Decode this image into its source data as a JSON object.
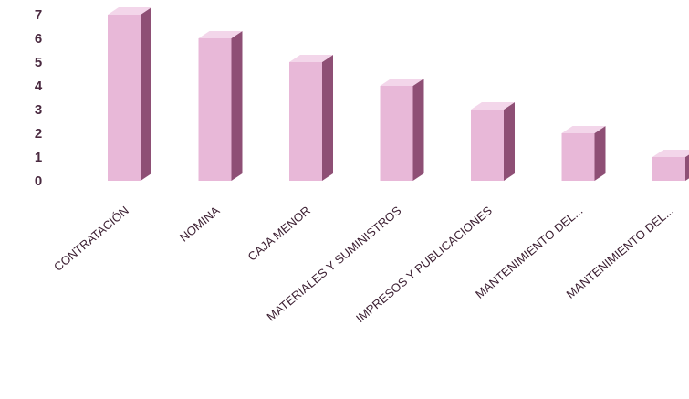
{
  "colors": {
    "bar_front": "#e8b8d8",
    "bar_side": "#8e4f75",
    "bar_top": "#f3d6ea",
    "axis_text": "#4a2a40",
    "category_text": "#3a1d30"
  },
  "chart_data": {
    "type": "bar",
    "style": "3d-column",
    "title": "",
    "xlabel": "",
    "ylabel": "",
    "ylim": [
      0,
      7
    ],
    "yticks": [
      0,
      1,
      2,
      3,
      4,
      5,
      6,
      7
    ],
    "grid": false,
    "legend": "none",
    "categories": [
      "CONTRATACIÓN",
      "NOMINA",
      "CAJA MENOR",
      "MATERIALES Y SUMINISTROS",
      "IMPRESOS Y PUBLICACIONES",
      "MANTENIMIENTO DEL...",
      "MANTENIMIENTO DEL..."
    ],
    "values": [
      7,
      6,
      5,
      4,
      3,
      2,
      1
    ]
  }
}
